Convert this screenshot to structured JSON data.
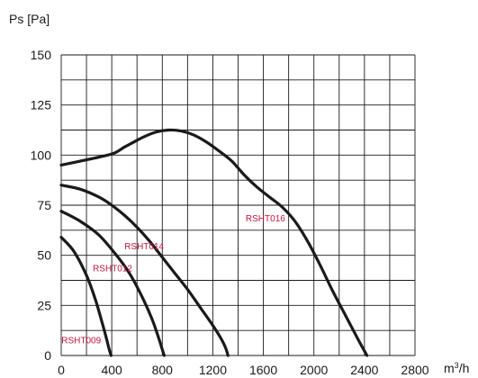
{
  "chart_data": {
    "type": "line",
    "title": "",
    "xlabel": "m³/h",
    "ylabel": "Ps [Pa]",
    "xlim": [
      0,
      2800
    ],
    "ylim": [
      0,
      150
    ],
    "x_ticks": [
      0,
      400,
      800,
      1200,
      1600,
      2000,
      2400,
      2800
    ],
    "y_ticks": [
      0,
      25,
      50,
      75,
      100,
      125,
      150
    ],
    "x_tick_labels": [
      "0",
      "400",
      "800",
      "1200",
      "1600",
      "2000",
      "2400",
      "2800"
    ],
    "y_tick_labels": [
      "0",
      "25",
      "50",
      "75",
      "100",
      "125",
      "150"
    ],
    "grid": true,
    "grid_x_step": 200,
    "grid_y_step": 12.5,
    "colors": {
      "curve": "#1a1a1a",
      "label": "#c0143c",
      "grid": "#1a1a1a"
    },
    "series": [
      {
        "name": "RSHT009",
        "x": [
          0,
          100,
          200,
          270,
          330,
          360,
          380,
          395
        ],
        "y": [
          59,
          52,
          40,
          28,
          15,
          8,
          3,
          0
        ]
      },
      {
        "name": "RSHT012",
        "x": [
          0,
          150,
          300,
          450,
          550,
          650,
          720,
          770,
          800,
          815
        ],
        "y": [
          72,
          67,
          60,
          49,
          40,
          28,
          18,
          9,
          3,
          0
        ]
      },
      {
        "name": "RSHT014",
        "x": [
          0,
          150,
          300,
          400,
          500,
          600,
          700,
          800,
          900,
          1000,
          1100,
          1200,
          1260,
          1300,
          1320
        ],
        "y": [
          85,
          83,
          79,
          75,
          70,
          64,
          57,
          49,
          41,
          33,
          24,
          15,
          9,
          4,
          0
        ]
      },
      {
        "name": "RSHT016",
        "x": [
          0,
          150,
          300,
          420,
          500,
          560,
          650,
          750,
          850,
          950,
          1050,
          1150,
          1250,
          1350,
          1450,
          1550,
          1650,
          1750,
          1850,
          1950,
          2050,
          2150,
          2250,
          2350,
          2420
        ],
        "y": [
          95,
          97,
          99,
          101,
          104,
          106,
          109,
          111.5,
          112.5,
          112,
          110,
          106.5,
          102,
          97,
          90,
          84,
          79,
          74,
          67,
          57,
          45,
          32,
          20,
          8,
          0
        ]
      }
    ],
    "labels": [
      {
        "series": "RSHT009",
        "text": "RSHT009",
        "x": 2,
        "y": 6
      },
      {
        "series": "RSHT012",
        "text": "RSHT012",
        "x": 250,
        "y": 42
      },
      {
        "series": "RSHT014",
        "text": "RSHT014",
        "x": 500,
        "y": 53
      },
      {
        "series": "RSHT016",
        "text": "RSHT016",
        "x": 1460,
        "y": 67
      }
    ]
  }
}
